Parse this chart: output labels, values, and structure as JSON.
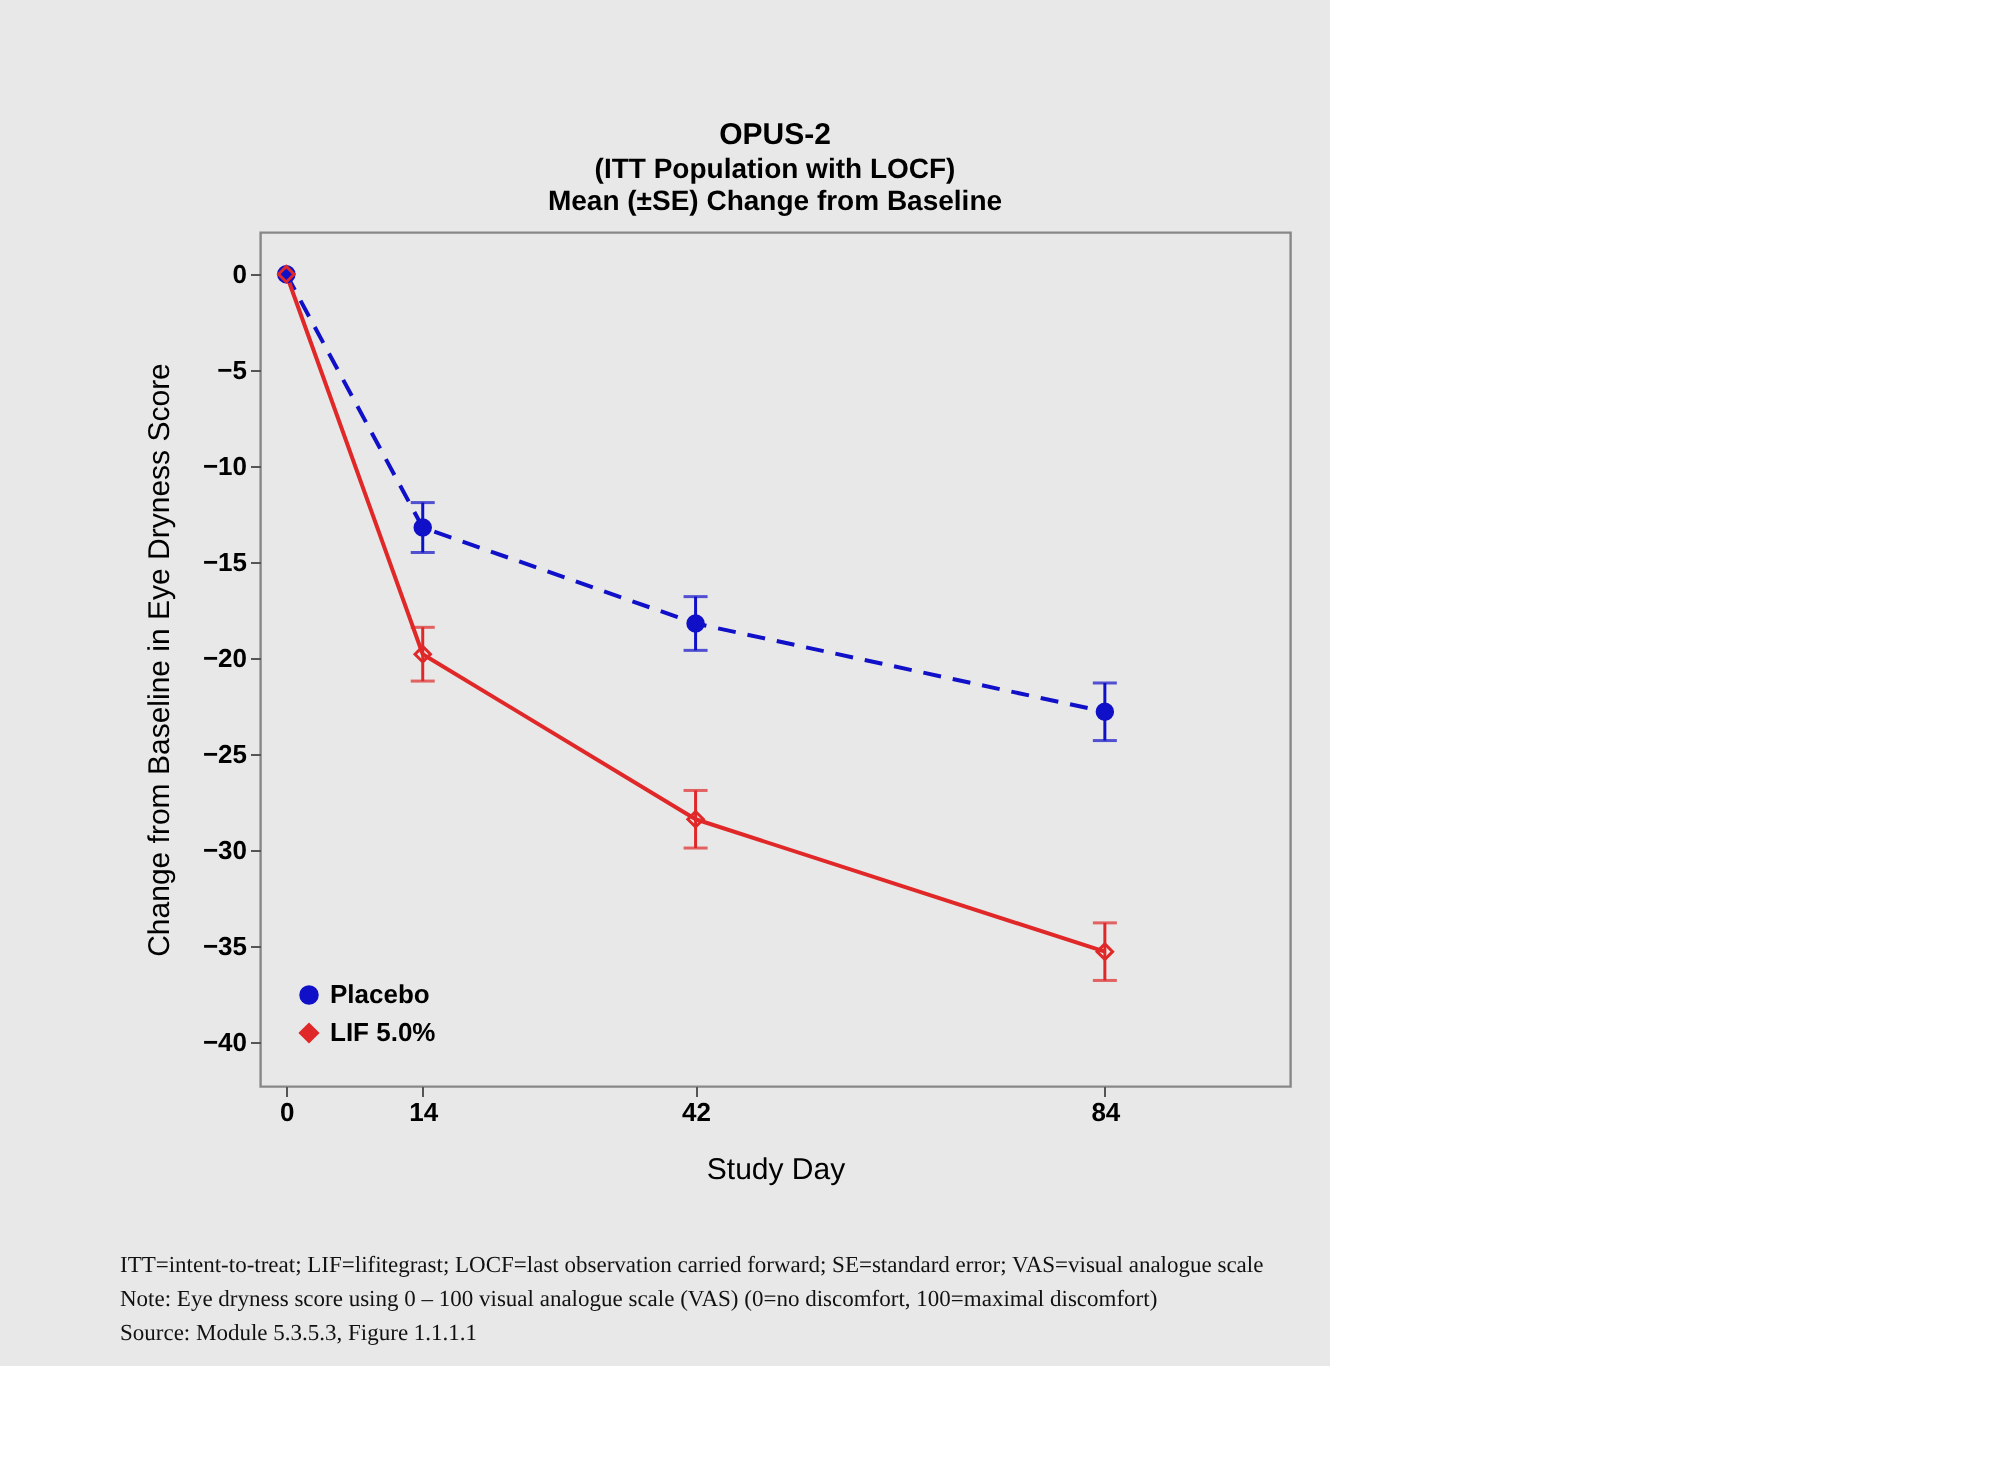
{
  "chart_data": {
    "type": "line",
    "title": "OPUS-2",
    "subtitle": "(ITT Population with LOCF)\nMean (±SE) Change from Baseline",
    "xlabel": "Study Day",
    "ylabel": "Change from Baseline in Eye Dryness Score",
    "x": [
      0,
      14,
      42,
      84
    ],
    "series": [
      {
        "name": "Placebo",
        "color": "#1010c8",
        "values": [
          0,
          -13.2,
          -18.2,
          -22.8
        ],
        "errors": [
          null,
          1.3,
          1.4,
          1.5
        ],
        "marker": "circle",
        "line_style": "dashed"
      },
      {
        "name": "LIF 5.0%",
        "color": "#e02828",
        "values": [
          0,
          -19.8,
          -28.4,
          -35.3
        ],
        "errors": [
          null,
          1.4,
          1.5,
          1.5
        ],
        "marker": "diamond",
        "line_style": "solid"
      }
    ],
    "xlim": [
      -2.7,
      103
    ],
    "xticks": [
      0,
      14,
      42,
      84
    ],
    "ylim": [
      -42.3,
      2.2
    ],
    "yticks": [
      0,
      -5,
      -10,
      -15,
      -20,
      -25,
      -30,
      -35,
      -40
    ],
    "grid": false,
    "legend": "bottom left",
    "annotations": [
      "ITT=intent-to-treat; LIF=lifitegrast; LOCF=last observation carried forward; SE=standard error; VAS=visual analogue scale",
      "Note: Eye dryness score using 0 – 100 visual analogue scale (VAS) (0=no discomfort, 100=maximal discomfort)",
      "Source:  Module 5.3.5.3, Figure 1.1.1.1"
    ]
  }
}
